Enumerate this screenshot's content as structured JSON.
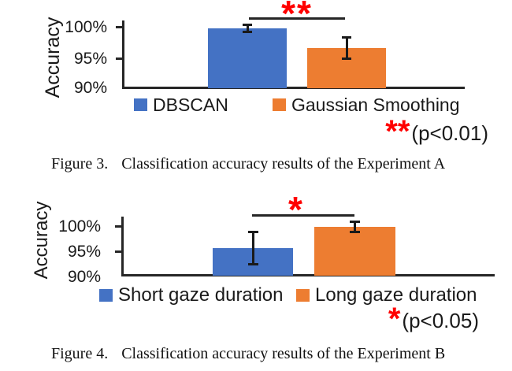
{
  "colors": {
    "bar_blue": "#4472C4",
    "bar_orange": "#ED7D31",
    "significance_red": "#FF0000",
    "axis": "#262626",
    "text": "#1A1A1A"
  },
  "figures": [
    {
      "caption_label": "Figure 3.",
      "caption_text": "Classification accuracy results of the Experiment A"
    },
    {
      "caption_label": "Figure 4.",
      "caption_text": "Classification accuracy results of the Experiment B"
    }
  ],
  "chart_data": [
    {
      "type": "bar",
      "title": "Figure 3. Classification accuracy results of the Experiment A",
      "categories": [
        "DBSCAN",
        "Gaussian Smoothing"
      ],
      "values": [
        99.8,
        96.6
      ],
      "error_bars": [
        0.8,
        1.9
      ],
      "colors": [
        "#4472C4",
        "#ED7D31"
      ],
      "xlabel": "",
      "ylabel": "Accuracy",
      "ytick_labels": [
        "100%",
        "95%",
        "90%"
      ],
      "ytick_values": [
        100,
        95,
        90
      ],
      "ylim": [
        90,
        101.2
      ],
      "grid": false,
      "legend_position": "bottom",
      "significance": {
        "stars": "**",
        "p_label": "(p<0.01)",
        "between": [
          "DBSCAN",
          "Gaussian Smoothing"
        ]
      }
    },
    {
      "type": "bar",
      "title": "Figure 4. Classification accuracy results of the Experiment B",
      "categories": [
        "Short gaze duration",
        "Long gaze duration"
      ],
      "values": [
        95.5,
        99.7
      ],
      "error_bars": [
        3.4,
        1.2
      ],
      "colors": [
        "#4472C4",
        "#ED7D31"
      ],
      "xlabel": "",
      "ylabel": "Accuracy",
      "ytick_labels": [
        "100%",
        "95%",
        "90%"
      ],
      "ytick_values": [
        100,
        95,
        90
      ],
      "ylim": [
        90,
        101.9
      ],
      "grid": false,
      "legend_position": "bottom",
      "significance": {
        "stars": "*",
        "p_label": "(p<0.05)",
        "between": [
          "Short gaze duration",
          "Long gaze duration"
        ]
      }
    }
  ]
}
